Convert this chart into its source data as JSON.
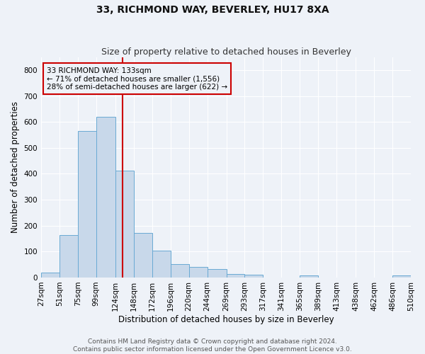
{
  "title": "33, RICHMOND WAY, BEVERLEY, HU17 8XA",
  "subtitle": "Size of property relative to detached houses in Beverley",
  "xlabel": "Distribution of detached houses by size in Beverley",
  "ylabel": "Number of detached properties",
  "bin_labels": [
    "27sqm",
    "51sqm",
    "75sqm",
    "99sqm",
    "124sqm",
    "148sqm",
    "172sqm",
    "196sqm",
    "220sqm",
    "244sqm",
    "269sqm",
    "293sqm",
    "317sqm",
    "341sqm",
    "365sqm",
    "389sqm",
    "413sqm",
    "438sqm",
    "462sqm",
    "486sqm",
    "510sqm"
  ],
  "bin_edges": [
    27,
    51,
    75,
    99,
    124,
    148,
    172,
    196,
    220,
    244,
    269,
    293,
    317,
    341,
    365,
    389,
    413,
    438,
    462,
    486,
    510
  ],
  "bar_heights": [
    18,
    165,
    565,
    620,
    413,
    172,
    103,
    53,
    42,
    32,
    14,
    12,
    0,
    0,
    9,
    0,
    0,
    0,
    0,
    8
  ],
  "bar_color": "#c8d8ea",
  "bar_edge_color": "#6aaad4",
  "red_line_x": 133,
  "annotation_line1": "33 RICHMOND WAY: 133sqm",
  "annotation_line2": "← 71% of detached houses are smaller (1,556)",
  "annotation_line3": "28% of semi-detached houses are larger (622) →",
  "annotation_box_color": "#cc0000",
  "ylim": [
    0,
    850
  ],
  "yticks": [
    0,
    100,
    200,
    300,
    400,
    500,
    600,
    700,
    800
  ],
  "footer_line1": "Contains HM Land Registry data © Crown copyright and database right 2024.",
  "footer_line2": "Contains public sector information licensed under the Open Government Licence v3.0.",
  "background_color": "#eef2f8",
  "grid_color": "#ffffff",
  "title_fontsize": 10,
  "subtitle_fontsize": 9,
  "axis_label_fontsize": 8.5,
  "tick_fontsize": 7.5,
  "annotation_fontsize": 7.5,
  "footer_fontsize": 6.5
}
